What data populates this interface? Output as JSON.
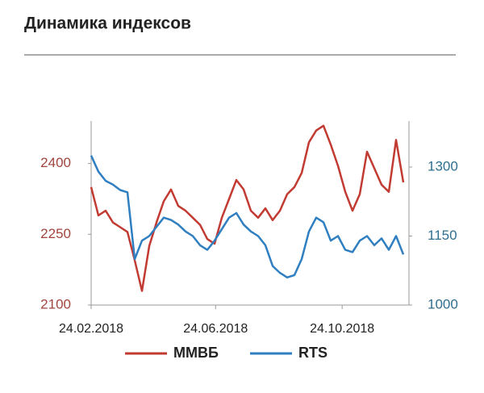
{
  "chart_data": {
    "type": "line",
    "title": "Динамика индексов",
    "x": [
      "24.02.2018",
      "03.03.2018",
      "10.03.2018",
      "17.03.2018",
      "24.03.2018",
      "31.03.2018",
      "07.04.2018",
      "14.04.2018",
      "21.04.2018",
      "28.04.2018",
      "05.05.2018",
      "12.05.2018",
      "19.05.2018",
      "26.05.2018",
      "02.06.2018",
      "09.06.2018",
      "16.06.2018",
      "23.06.2018",
      "30.06.2018",
      "07.07.2018",
      "14.07.2018",
      "21.07.2018",
      "28.07.2018",
      "04.08.2018",
      "11.08.2018",
      "18.08.2018",
      "25.08.2018",
      "01.09.2018",
      "08.09.2018",
      "15.09.2018",
      "22.09.2018",
      "29.09.2018",
      "06.10.2018",
      "13.10.2018",
      "20.10.2018",
      "27.10.2018",
      "03.11.2018",
      "10.11.2018",
      "17.11.2018",
      "24.11.2018",
      "01.12.2018",
      "08.12.2018",
      "15.12.2018",
      "22.12.2018"
    ],
    "xlim": [
      "24.02.2018",
      "22.12.2018"
    ],
    "xticks": [
      "24.02.2018",
      "24.06.2018",
      "24.10.2018"
    ],
    "ylim": [
      2100,
      2490
    ],
    "yticks": [
      2100,
      2250,
      2400
    ],
    "y2lim": [
      1000,
      1400
    ],
    "y2ticks": [
      1000,
      1150,
      1300
    ],
    "series": [
      {
        "name": "ММВБ",
        "color": "#c23b32",
        "values": [
          2350,
          2290,
          2300,
          2275,
          2265,
          2255,
          2195,
          2130,
          2225,
          2275,
          2320,
          2345,
          2310,
          2300,
          2285,
          2270,
          2240,
          2230,
          2285,
          2325,
          2365,
          2345,
          2300,
          2285,
          2305,
          2280,
          2300,
          2335,
          2350,
          2380,
          2445,
          2470,
          2480,
          2440,
          2395,
          2340,
          2300,
          2335,
          2425,
          2390,
          2355,
          2340,
          2450,
          2360
        ]
      },
      {
        "name": "RTS",
        "color": "#2f7fc1",
        "axis": "y2",
        "values": [
          1325,
          1290,
          1270,
          1262,
          1250,
          1245,
          1100,
          1140,
          1150,
          1170,
          1190,
          1185,
          1175,
          1160,
          1150,
          1130,
          1120,
          1140,
          1165,
          1190,
          1200,
          1175,
          1160,
          1150,
          1130,
          1085,
          1070,
          1060,
          1065,
          1100,
          1160,
          1190,
          1180,
          1140,
          1150,
          1120,
          1115,
          1140,
          1150,
          1130,
          1145,
          1120,
          1150,
          1110
        ]
      }
    ]
  }
}
